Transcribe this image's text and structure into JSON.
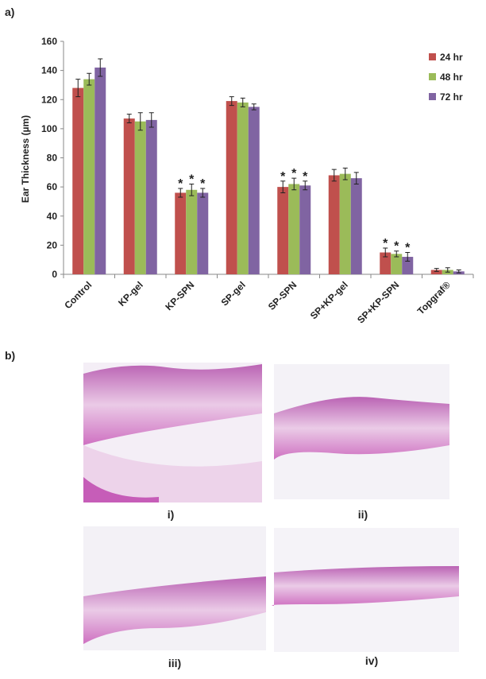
{
  "chart_data": {
    "type": "bar",
    "ylabel": "Ear Thickness (µm)",
    "categories": [
      "Control",
      "KP-gel",
      "KP-SPN",
      "SP-gel",
      "SP-SPN",
      "SP+KP-gel",
      "SP+KP-SPN",
      "Topgraf®"
    ],
    "series": [
      {
        "name": "24 hr",
        "color": "#c0504d",
        "values": [
          128,
          107,
          56,
          119,
          60,
          68,
          15,
          3
        ],
        "errors": [
          6,
          3,
          3,
          3,
          4,
          4,
          3,
          1
        ],
        "markers": [
          null,
          null,
          "*",
          null,
          "*",
          null,
          "*",
          null
        ]
      },
      {
        "name": "48 hr",
        "color": "#9bbb59",
        "values": [
          134,
          105,
          58,
          118,
          62,
          69,
          14,
          3
        ],
        "errors": [
          4,
          6,
          4,
          3,
          4,
          4,
          2,
          1.5
        ],
        "markers": [
          null,
          null,
          "*",
          null,
          "*",
          null,
          "*",
          null
        ]
      },
      {
        "name": "72 hr",
        "color": "#8064a2",
        "values": [
          142,
          106,
          56,
          115,
          61,
          66,
          12,
          2
        ],
        "errors": [
          6,
          5,
          3,
          2,
          3,
          4,
          3,
          1
        ],
        "markers": [
          null,
          null,
          "*",
          null,
          "*",
          null,
          "*",
          null
        ]
      }
    ],
    "ylim": [
      0,
      160
    ],
    "yticks": [
      0,
      20,
      40,
      60,
      80,
      100,
      120,
      140,
      160
    ],
    "legend": "upper right",
    "grid": false
  },
  "panels": {
    "a": "a)",
    "b": "b)"
  },
  "images": [
    {
      "label": "i)"
    },
    {
      "label": "ii)"
    },
    {
      "label": "iii)"
    },
    {
      "label": "iv)"
    }
  ]
}
